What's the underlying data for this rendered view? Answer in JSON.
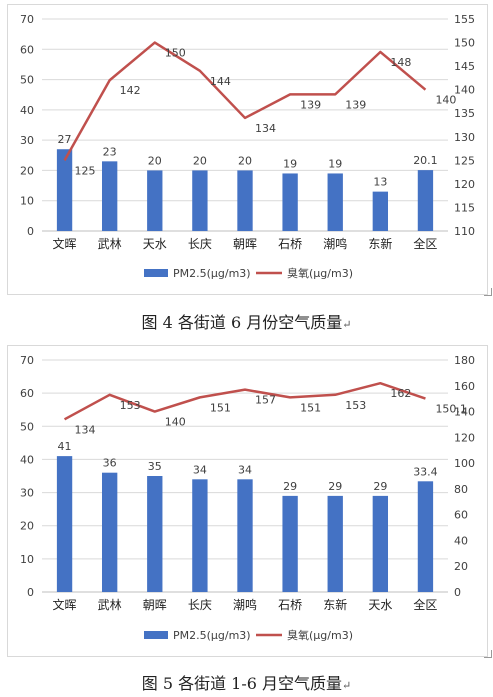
{
  "figures": [
    {
      "caption": "图 4  各街道 6 月份空气质量",
      "chart_data": {
        "type": "bar",
        "categories": [
          "文晖",
          "武林",
          "天水",
          "长庆",
          "朝晖",
          "石桥",
          "潮鸣",
          "东新",
          "全区"
        ],
        "series": [
          {
            "name": "PM2.5(μg/m3)",
            "type": "bar",
            "axis": "left",
            "color": "#4472c4",
            "values": [
              27,
              23,
              20,
              20,
              20,
              19,
              19,
              13,
              20.1
            ],
            "labels": [
              "27",
              "23",
              "20",
              "20",
              "20",
              "19",
              "19",
              "13",
              "20.1"
            ]
          },
          {
            "name": "臭氧(μg/m3)",
            "type": "line",
            "axis": "right",
            "color": "#c0504d",
            "values": [
              125,
              142,
              150,
              144,
              134,
              139,
              139,
              148,
              140
            ],
            "labels": [
              "125",
              "142",
              "150",
              "144",
              "134",
              "139",
              "139",
              "148",
              "140"
            ]
          }
        ],
        "ylim_left": [
          0,
          70
        ],
        "yticks_left": [
          0,
          10,
          20,
          30,
          40,
          50,
          60,
          70
        ],
        "ylim_right": [
          110,
          155
        ],
        "yticks_right": [
          110,
          115,
          120,
          125,
          130,
          135,
          140,
          145,
          150,
          155
        ],
        "grid": true,
        "legend": "bottom"
      }
    },
    {
      "caption": "图 5  各街道 1-6 月空气质量",
      "chart_data": {
        "type": "bar",
        "categories": [
          "文晖",
          "武林",
          "朝晖",
          "长庆",
          "潮鸣",
          "石桥",
          "东新",
          "天水",
          "全区"
        ],
        "series": [
          {
            "name": "PM2.5(μg/m3)",
            "type": "bar",
            "axis": "left",
            "color": "#4472c4",
            "values": [
              41,
              36,
              35,
              34,
              34,
              29,
              29,
              29,
              33.4
            ],
            "labels": [
              "41",
              "36",
              "35",
              "34",
              "34",
              "29",
              "29",
              "29",
              "33.4"
            ]
          },
          {
            "name": "臭氧(μg/m3)",
            "type": "line",
            "axis": "right",
            "color": "#c0504d",
            "values": [
              134,
              153,
              140,
              151,
              157,
              151,
              153,
              162,
              150.1
            ],
            "labels": [
              "134",
              "153",
              "140",
              "151",
              "157",
              "151",
              "153",
              "162",
              "150.1"
            ]
          }
        ],
        "ylim_left": [
          0,
          70
        ],
        "yticks_left": [
          0,
          10,
          20,
          30,
          40,
          50,
          60,
          70
        ],
        "ylim_right": [
          0,
          180
        ],
        "yticks_right": [
          0,
          20,
          40,
          60,
          80,
          100,
          120,
          140,
          160,
          180
        ],
        "grid": true,
        "legend": "bottom"
      }
    }
  ]
}
